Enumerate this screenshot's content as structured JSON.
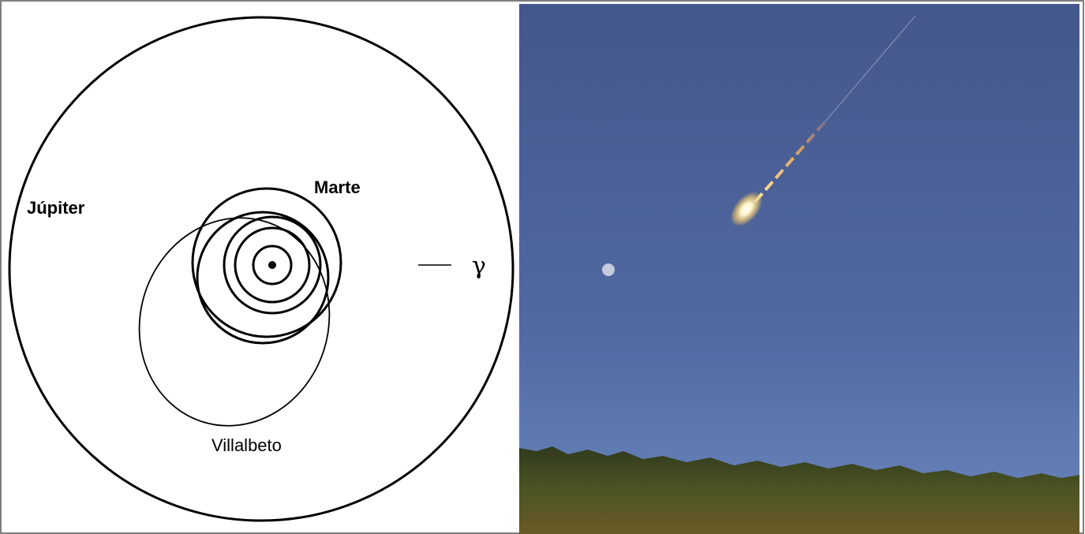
{
  "labels": {
    "jupiter": "Júpiter",
    "mars": "Marte",
    "gamma": "γ",
    "meteorite": "Villalbeto"
  }
}
